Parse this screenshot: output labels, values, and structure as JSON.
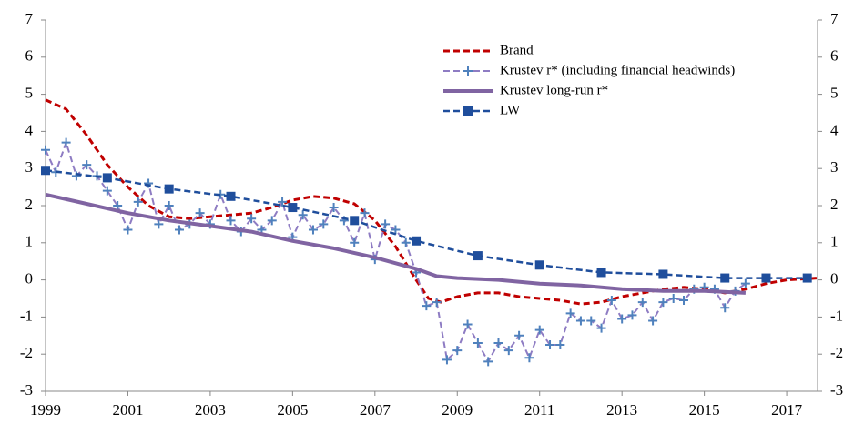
{
  "chart_data": {
    "type": "line",
    "xlim": [
      1999,
      2017.75
    ],
    "xticks": [
      1999,
      2001,
      2003,
      2005,
      2007,
      2009,
      2011,
      2013,
      2015,
      2017
    ],
    "ylim": [
      -3,
      7
    ],
    "yticks": [
      -3,
      -2,
      -1,
      0,
      1,
      2,
      3,
      4,
      5,
      6,
      7
    ],
    "y2lim": [
      -3,
      7
    ],
    "y2ticks": [
      -3,
      -2,
      -1,
      0,
      1,
      2,
      3,
      4,
      5,
      6,
      7
    ],
    "legend": "upper right",
    "series": [
      {
        "name": "Brand",
        "color": "#c00000",
        "dash": true,
        "marker": "none",
        "width": 3,
        "x": [
          1999,
          1999.5,
          2000,
          2000.5,
          2001,
          2001.5,
          2002,
          2002.5,
          2003,
          2003.5,
          2004,
          2004.5,
          2005,
          2005.5,
          2006,
          2006.5,
          2007,
          2007.5,
          2008,
          2008.3,
          2008.6,
          2009,
          2009.5,
          2010,
          2010.5,
          2011,
          2011.5,
          2012,
          2012.5,
          2013,
          2013.5,
          2014,
          2014.5,
          2015,
          2015.5,
          2016,
          2016.5,
          2017,
          2017.75
        ],
        "values": [
          4.85,
          4.6,
          3.9,
          3.1,
          2.5,
          2.0,
          1.7,
          1.65,
          1.7,
          1.75,
          1.8,
          1.95,
          2.15,
          2.25,
          2.2,
          2.05,
          1.6,
          0.9,
          0.0,
          -0.5,
          -0.6,
          -0.45,
          -0.35,
          -0.35,
          -0.45,
          -0.5,
          -0.55,
          -0.65,
          -0.6,
          -0.45,
          -0.35,
          -0.25,
          -0.2,
          -0.25,
          -0.35,
          -0.25,
          -0.1,
          0.0,
          0.05
        ]
      },
      {
        "name": "Krustev r* (including financial headwinds)",
        "color": "#8e7cc3",
        "marker_color": "#4f81bd",
        "dash": true,
        "marker": "plus",
        "width": 2,
        "x": [
          1999,
          1999.25,
          1999.5,
          1999.75,
          2000,
          2000.25,
          2000.5,
          2000.75,
          2001,
          2001.25,
          2001.5,
          2001.75,
          2002,
          2002.25,
          2002.5,
          2002.75,
          2003,
          2003.25,
          2003.5,
          2003.75,
          2004,
          2004.25,
          2004.5,
          2004.75,
          2005,
          2005.25,
          2005.5,
          2005.75,
          2006,
          2006.25,
          2006.5,
          2006.75,
          2007,
          2007.25,
          2007.5,
          2007.75,
          2008,
          2008.25,
          2008.5,
          2008.75,
          2009,
          2009.25,
          2009.5,
          2009.75,
          2010,
          2010.25,
          2010.5,
          2010.75,
          2011,
          2011.25,
          2011.5,
          2011.75,
          2012,
          2012.25,
          2012.5,
          2012.75,
          2013,
          2013.25,
          2013.5,
          2013.75,
          2014,
          2014.25,
          2014.5,
          2014.75,
          2015,
          2015.25,
          2015.5,
          2015.75,
          2016
        ],
        "values": [
          3.5,
          2.9,
          3.7,
          2.8,
          3.1,
          2.8,
          2.4,
          2.0,
          1.35,
          2.1,
          2.6,
          1.5,
          2.0,
          1.35,
          1.5,
          1.8,
          1.5,
          2.3,
          1.6,
          1.3,
          1.65,
          1.35,
          1.6,
          2.1,
          1.15,
          1.75,
          1.35,
          1.5,
          1.95,
          1.6,
          1.0,
          1.8,
          0.55,
          1.5,
          1.35,
          1.0,
          0.2,
          -0.7,
          -0.6,
          -2.15,
          -1.9,
          -1.2,
          -1.7,
          -2.2,
          -1.7,
          -1.9,
          -1.5,
          -2.1,
          -1.35,
          -1.75,
          -1.75,
          -0.9,
          -1.1,
          -1.1,
          -1.3,
          -0.55,
          -1.05,
          -0.95,
          -0.6,
          -1.1,
          -0.6,
          -0.5,
          -0.55,
          -0.25,
          -0.2,
          -0.25,
          -0.75,
          -0.3,
          -0.1
        ]
      },
      {
        "name": "Krustev long-run r*",
        "color": "#8064a2",
        "dash": false,
        "marker": "none",
        "width": 4,
        "x": [
          1999,
          2000,
          2001,
          2002,
          2003,
          2004,
          2005,
          2006,
          2007,
          2008,
          2008.5,
          2009,
          2010,
          2011,
          2012,
          2013,
          2014,
          2015,
          2016
        ],
        "values": [
          2.3,
          2.05,
          1.8,
          1.6,
          1.45,
          1.3,
          1.05,
          0.85,
          0.6,
          0.3,
          0.1,
          0.05,
          0.0,
          -0.1,
          -0.15,
          -0.25,
          -0.3,
          -0.3,
          -0.35
        ]
      },
      {
        "name": "LW",
        "color": "#1f4e9c",
        "dash": true,
        "marker": "square",
        "width": 2.5,
        "x": [
          1999,
          2000.5,
          2002,
          2003.5,
          2005,
          2006.5,
          2008,
          2009.5,
          2011,
          2012.5,
          2014,
          2015.5,
          2016.5,
          2017.5
        ],
        "values": [
          2.95,
          2.75,
          2.45,
          2.25,
          1.95,
          1.6,
          1.05,
          0.65,
          0.4,
          0.2,
          0.15,
          0.05,
          0.05,
          0.05
        ]
      }
    ]
  }
}
